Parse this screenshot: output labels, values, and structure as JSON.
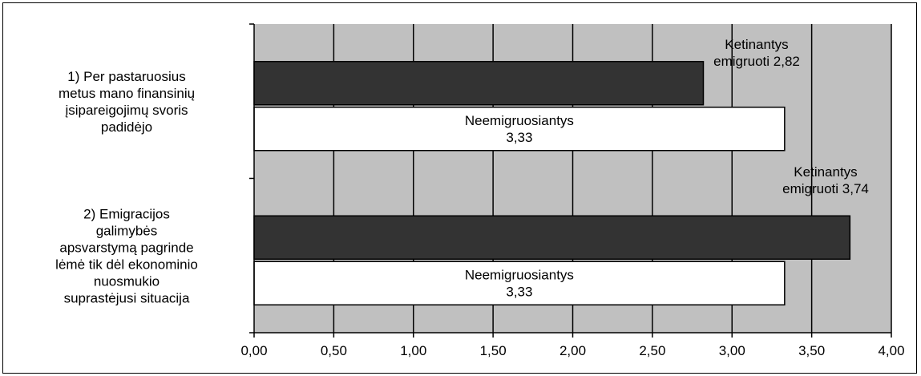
{
  "chart_data": {
    "type": "bar",
    "orientation": "horizontal",
    "categories": [
      {
        "lines": [
          "1) Per pastaruosius",
          "metus mano finansinių",
          "įsipareigojimų svoris",
          "padidėjo"
        ]
      },
      {
        "lines": [
          "2) Emigracijos",
          "galimybės",
          "apsvarstymą pagrinde",
          "lėmė tik dėl ekonominio",
          "nuosmukio",
          "suprastėjusi situacija"
        ]
      }
    ],
    "series": [
      {
        "key": "emigrate",
        "values": [
          2.82,
          3.74
        ],
        "color": "#333333",
        "labels": [
          {
            "lines": [
              "Ketinantys",
              "emigruoti 2,82"
            ]
          },
          {
            "lines": [
              "Ketinantys",
              "emigruoti 3,74"
            ]
          }
        ]
      },
      {
        "key": "stay",
        "values": [
          3.33,
          3.33
        ],
        "color": "#ffffff",
        "labels": [
          {
            "lines": [
              "Neemigruosiantys",
              "3,33"
            ]
          },
          {
            "lines": [
              "Neemigruosiantys",
              "3,33"
            ]
          }
        ]
      }
    ],
    "xlim": [
      0,
      4
    ],
    "xticks": [
      0,
      0.5,
      1,
      1.5,
      2,
      2.5,
      3,
      3.5,
      4
    ],
    "xtick_labels": [
      "0,00",
      "0,50",
      "1,00",
      "1,50",
      "2,00",
      "2,50",
      "3,00",
      "3,50",
      "4,00"
    ],
    "grid": true,
    "plot_background": "#c0c0c0",
    "legend": "none"
  }
}
